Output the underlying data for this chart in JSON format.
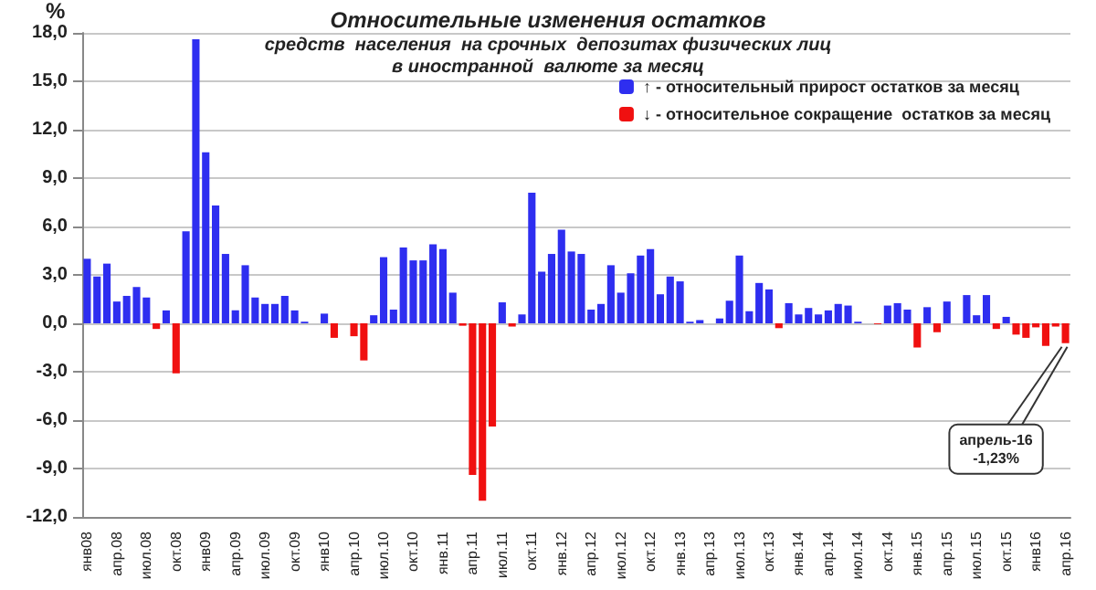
{
  "chart_data": {
    "type": "bar",
    "title": "Относительные изменения остатков",
    "subtitle": "средств  населения  на срочных  депозитах физических лиц\nв иностранной  валюте за месяц",
    "ylabel": "%",
    "categories": [
      "янв08",
      null,
      null,
      "апр.08",
      null,
      null,
      "июл.08",
      null,
      null,
      "окт.08",
      null,
      null,
      "янв09",
      null,
      null,
      "апр.09",
      null,
      null,
      "июл.09",
      null,
      null,
      "окт.09",
      null,
      null,
      "янв10",
      null,
      null,
      "апр.10",
      null,
      null,
      "июл.10",
      null,
      null,
      "окт.10",
      null,
      null,
      "янв.11",
      null,
      null,
      "апр.11",
      null,
      null,
      "июл.11",
      null,
      null,
      "окт.11",
      null,
      null,
      "янв.12",
      null,
      null,
      "апр.12",
      null,
      null,
      "июл.12",
      null,
      null,
      "окт.12",
      null,
      null,
      "янв.13",
      null,
      null,
      "апр.13",
      null,
      null,
      "июл.13",
      null,
      null,
      "окт.13",
      null,
      null,
      "янв.14",
      null,
      null,
      "апр.14",
      null,
      null,
      "июл.14",
      null,
      null,
      "окт.14",
      null,
      null,
      "янв.15",
      null,
      null,
      "апр.15",
      null,
      null,
      "июл.15",
      null,
      null,
      "окт.15",
      null,
      null,
      "янв16",
      null,
      null,
      "апр.16"
    ],
    "stacked": true,
    "series": [
      {
        "name": "↑ - относительный прирост остатков за месяц",
        "color": "#2e2ef0",
        "values": [
          4.0,
          2.9,
          3.7,
          1.35,
          1.7,
          2.25,
          1.6,
          null,
          0.8,
          null,
          5.7,
          17.6,
          10.6,
          7.3,
          4.3,
          0.8,
          3.6,
          1.6,
          1.2,
          1.2,
          1.7,
          0.8,
          0.1,
          0.0,
          0.6,
          null,
          0.0,
          null,
          null,
          0.5,
          4.1,
          0.85,
          4.7,
          3.9,
          3.9,
          4.9,
          4.6,
          1.9,
          null,
          null,
          null,
          null,
          1.3,
          null,
          0.55,
          8.1,
          3.2,
          4.3,
          5.8,
          4.45,
          4.3,
          0.85,
          1.2,
          3.6,
          1.9,
          3.1,
          4.2,
          4.6,
          1.8,
          2.9,
          2.6,
          0.1,
          0.2,
          0.0,
          0.3,
          1.4,
          4.2,
          0.75,
          2.5,
          2.1,
          null,
          1.25,
          0.55,
          0.95,
          0.55,
          0.8,
          1.2,
          1.1,
          0.1,
          0.0,
          null,
          1.1,
          1.25,
          0.85,
          null,
          1.0,
          null,
          1.35,
          0.0,
          1.75,
          0.5,
          1.75,
          null,
          0.4,
          null,
          null,
          null,
          null,
          null,
          null
        ]
      },
      {
        "name": "↓ - относительное сокращение  остатков за месяц",
        "color": "#f01010",
        "values": [
          null,
          null,
          null,
          null,
          null,
          null,
          null,
          -0.35,
          null,
          -3.1,
          null,
          null,
          null,
          null,
          null,
          null,
          null,
          null,
          null,
          null,
          null,
          null,
          null,
          null,
          null,
          -0.9,
          null,
          -0.8,
          -2.3,
          null,
          null,
          null,
          null,
          null,
          null,
          null,
          null,
          null,
          -0.15,
          -9.4,
          -11.0,
          -6.4,
          null,
          -0.2,
          null,
          null,
          null,
          null,
          null,
          null,
          null,
          null,
          null,
          null,
          null,
          null,
          null,
          null,
          null,
          null,
          null,
          null,
          null,
          null,
          null,
          null,
          null,
          null,
          null,
          null,
          -0.3,
          null,
          null,
          null,
          null,
          null,
          null,
          null,
          null,
          null,
          -0.05,
          null,
          null,
          null,
          -1.5,
          null,
          -0.55,
          null,
          null,
          null,
          null,
          null,
          -0.35,
          null,
          -0.7,
          -0.9,
          -0.25,
          -1.4,
          -0.2,
          -1.23
        ]
      }
    ],
    "ylim": [
      -12,
      18
    ],
    "yticks": [
      {
        "value": -12,
        "label": "-12,0"
      },
      {
        "value": -9,
        "label": "-9,0"
      },
      {
        "value": -6,
        "label": "-6,0"
      },
      {
        "value": -3,
        "label": "-3,0"
      },
      {
        "value": 0,
        "label": "0,0"
      },
      {
        "value": 3,
        "label": "3,0"
      },
      {
        "value": 6,
        "label": "6,0"
      },
      {
        "value": 9,
        "label": "9,0"
      },
      {
        "value": 12,
        "label": "12,0"
      },
      {
        "value": 15,
        "label": "15,0"
      },
      {
        "value": 18,
        "label": "18,0"
      }
    ],
    "grid": "y",
    "legend": "top right",
    "annotations": [
      {
        "text": "апрель-16\n-1,23%",
        "x": "апр.16",
        "y": -1.23
      }
    ]
  }
}
